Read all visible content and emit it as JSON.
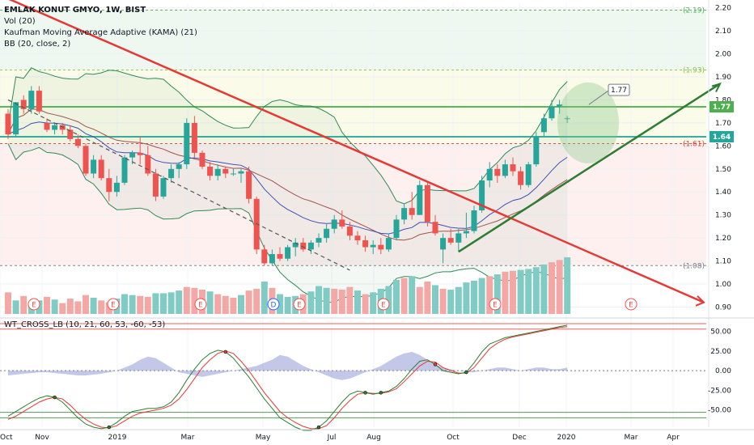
{
  "legend": {
    "title": "EMLAK KONUT GMYO, 1W, BIST",
    "vol": "Vol (20)",
    "kama": "Kaufman Moving Average Adaptive (KAMA) (21)",
    "bb": "BB (20, close, 2)"
  },
  "oscillator_legend": "WT_CROSS_LB (10, 21, 60, 53, -60, -53)",
  "colors": {
    "up": "#26a69a",
    "down": "#ef5350",
    "vol_up": "#80cbc4",
    "vol_down": "#f4a8a6",
    "bb": "#2e8b57",
    "kama": "#3f51b5",
    "basis": "#a1524e",
    "trend_red": "#e53935",
    "trend_green": "#2e7d32",
    "wt1": "#2e7d32",
    "wt2": "#e53935"
  },
  "chart_data": [
    {
      "type": "candlestick",
      "ylim": [
        0.87,
        2.22
      ],
      "yticks": [
        "2.20",
        "2.10",
        "2.00",
        "1.90",
        "1.80",
        "1.70",
        "1.60",
        "1.50",
        "1.40",
        "1.30",
        "1.20",
        "1.10",
        "1.00",
        "0.90"
      ],
      "xticks": [
        "Oct",
        "Nov",
        "2019",
        "Mar",
        "May",
        "Jul",
        "Aug",
        "Oct",
        "Dec",
        "2020",
        "Mar",
        "Apr"
      ],
      "horizontal_levels": [
        {
          "value": 2.19,
          "label": "(2.19)",
          "color": "#4caf50"
        },
        {
          "value": 1.93,
          "label": "(1.93)",
          "color": "#8bc34a"
        },
        {
          "value": 1.77,
          "label": "1.77",
          "color": "#4caf50"
        },
        {
          "value": 1.64,
          "label": "1.64",
          "color": "#26a69a"
        },
        {
          "value": 1.61,
          "label": "(1.61)",
          "color": "#e53935"
        },
        {
          "value": 1.08,
          "label": "(1.08)",
          "color": "#787b86"
        }
      ],
      "callout": "1.77",
      "event_markers": [
        "E",
        "E",
        "E",
        "D",
        "E",
        "E",
        "E"
      ],
      "candles": [
        [
          1.74,
          1.76,
          1.63,
          1.65
        ],
        [
          1.65,
          1.79,
          1.64,
          1.79
        ],
        [
          1.8,
          1.82,
          1.74,
          1.76
        ],
        [
          1.76,
          1.86,
          1.74,
          1.84
        ],
        [
          1.84,
          1.86,
          1.74,
          1.75
        ],
        [
          1.7,
          1.72,
          1.66,
          1.67
        ],
        [
          1.67,
          1.7,
          1.65,
          1.69
        ],
        [
          1.69,
          1.7,
          1.65,
          1.67
        ],
        [
          1.67,
          1.69,
          1.62,
          1.63
        ],
        [
          1.63,
          1.65,
          1.59,
          1.6
        ],
        [
          1.6,
          1.61,
          1.47,
          1.48
        ],
        [
          1.48,
          1.56,
          1.46,
          1.54
        ],
        [
          1.54,
          1.56,
          1.45,
          1.46
        ],
        [
          1.46,
          1.5,
          1.36,
          1.4
        ],
        [
          1.4,
          1.47,
          1.38,
          1.44
        ],
        [
          1.44,
          1.56,
          1.43,
          1.55
        ],
        [
          1.55,
          1.58,
          1.52,
          1.57
        ],
        [
          1.57,
          1.64,
          1.52,
          1.56
        ],
        [
          1.56,
          1.6,
          1.47,
          1.48
        ],
        [
          1.48,
          1.5,
          1.36,
          1.38
        ],
        [
          1.38,
          1.47,
          1.37,
          1.46
        ],
        [
          1.46,
          1.52,
          1.44,
          1.5
        ],
        [
          1.5,
          1.53,
          1.46,
          1.52
        ],
        [
          1.52,
          1.72,
          1.5,
          1.7
        ],
        [
          1.7,
          1.73,
          1.55,
          1.57
        ],
        [
          1.57,
          1.58,
          1.5,
          1.51
        ],
        [
          1.51,
          1.53,
          1.45,
          1.47
        ],
        [
          1.47,
          1.52,
          1.45,
          1.5
        ],
        [
          1.5,
          1.51,
          1.46,
          1.48
        ],
        [
          1.48,
          1.5,
          1.47,
          1.48
        ],
        [
          1.48,
          1.5,
          1.44,
          1.49
        ],
        [
          1.49,
          1.51,
          1.35,
          1.37
        ],
        [
          1.37,
          1.38,
          1.13,
          1.15
        ],
        [
          1.15,
          1.17,
          1.08,
          1.09
        ],
        [
          1.09,
          1.15,
          1.08,
          1.13
        ],
        [
          1.13,
          1.16,
          1.1,
          1.11
        ],
        [
          1.11,
          1.17,
          1.1,
          1.16
        ],
        [
          1.16,
          1.2,
          1.12,
          1.18
        ],
        [
          1.18,
          1.2,
          1.14,
          1.15
        ],
        [
          1.15,
          1.19,
          1.13,
          1.18
        ],
        [
          1.18,
          1.22,
          1.16,
          1.2
        ],
        [
          1.2,
          1.26,
          1.18,
          1.24
        ],
        [
          1.24,
          1.3,
          1.22,
          1.28
        ],
        [
          1.28,
          1.32,
          1.24,
          1.25
        ],
        [
          1.25,
          1.27,
          1.19,
          1.21
        ],
        [
          1.21,
          1.23,
          1.17,
          1.19
        ],
        [
          1.19,
          1.21,
          1.14,
          1.16
        ],
        [
          1.16,
          1.19,
          1.13,
          1.17
        ],
        [
          1.17,
          1.2,
          1.13,
          1.15
        ],
        [
          1.15,
          1.22,
          1.14,
          1.2
        ],
        [
          1.2,
          1.3,
          1.19,
          1.28
        ],
        [
          1.28,
          1.35,
          1.26,
          1.33
        ],
        [
          1.33,
          1.4,
          1.28,
          1.3
        ],
        [
          1.3,
          1.45,
          1.3,
          1.43
        ],
        [
          1.43,
          1.44,
          1.25,
          1.27
        ],
        [
          1.27,
          1.3,
          1.21,
          1.22
        ],
        [
          1.15,
          1.22,
          1.09,
          1.2
        ],
        [
          1.2,
          1.24,
          1.17,
          1.18
        ],
        [
          1.18,
          1.24,
          1.14,
          1.22
        ],
        [
          1.22,
          1.31,
          1.2,
          1.23
        ],
        [
          1.23,
          1.34,
          1.22,
          1.32
        ],
        [
          1.32,
          1.47,
          1.31,
          1.45
        ],
        [
          1.45,
          1.53,
          1.42,
          1.5
        ],
        [
          1.5,
          1.52,
          1.44,
          1.47
        ],
        [
          1.47,
          1.54,
          1.46,
          1.52
        ],
        [
          1.52,
          1.55,
          1.47,
          1.49
        ],
        [
          1.49,
          1.51,
          1.41,
          1.43
        ],
        [
          1.43,
          1.53,
          1.42,
          1.52
        ],
        [
          1.52,
          1.66,
          1.51,
          1.64
        ],
        [
          1.66,
          1.74,
          1.64,
          1.72
        ],
        [
          1.72,
          1.8,
          1.71,
          1.77
        ],
        [
          1.77,
          1.8,
          1.74,
          1.78
        ],
        [
          1.72,
          1.73,
          1.7,
          1.72
        ]
      ],
      "volume": [
        48,
        30,
        40,
        22,
        30,
        38,
        32,
        24,
        34,
        28,
        42,
        36,
        30,
        26,
        34,
        44,
        42,
        40,
        38,
        46,
        46,
        48,
        52,
        60,
        58,
        54,
        50,
        44,
        40,
        36,
        42,
        52,
        56,
        72,
        58,
        44,
        38,
        40,
        44,
        50,
        62,
        58,
        56,
        54,
        60,
        52,
        44,
        48,
        56,
        62,
        76,
        80,
        84,
        60,
        72,
        64,
        56,
        54,
        60,
        70,
        74,
        80,
        84,
        88,
        94,
        96,
        98,
        100,
        104,
        110,
        115,
        120,
        126
      ],
      "volume_up": [
        false,
        true,
        false,
        true,
        true,
        false,
        true,
        false,
        false,
        false,
        false,
        true,
        false,
        false,
        true,
        true,
        true,
        false,
        false,
        true,
        true,
        true,
        true,
        false,
        false,
        false,
        true,
        false,
        false,
        false,
        true,
        false,
        false,
        true,
        false,
        true,
        true,
        true,
        false,
        true,
        true,
        true,
        false,
        false,
        false,
        true,
        false,
        true,
        true,
        true,
        true,
        false,
        true,
        false,
        false,
        true,
        false,
        true,
        true,
        true,
        true,
        true,
        false,
        true,
        false,
        false,
        true,
        true,
        true,
        true,
        false,
        false,
        true
      ]
    },
    {
      "type": "line",
      "title": "WT_CROSS_LB (10, 21, 60, 53, -60, -53)",
      "ylim": [
        -72,
        62
      ],
      "yticks": [
        "50.00",
        "25.00",
        "0.00",
        "-25.00",
        "-50.00"
      ],
      "levels": [
        60,
        53,
        -53,
        -60
      ],
      "wt1": [
        -58,
        -52,
        -46,
        -40,
        -35,
        -32,
        -34,
        -40,
        -50,
        -60,
        -68,
        -72,
        -74,
        -72,
        -66,
        -58,
        -52,
        -50,
        -48,
        -48,
        -46,
        -40,
        -28,
        -12,
        2,
        14,
        22,
        26,
        24,
        16,
        4,
        -8,
        -22,
        -36,
        -48,
        -60,
        -66,
        -72,
        -76,
        -76,
        -72,
        -64,
        -52,
        -40,
        -30,
        -26,
        -28,
        -30,
        -28,
        -26,
        -20,
        -10,
        2,
        12,
        14,
        8,
        0,
        -2,
        -4,
        -2,
        10,
        24,
        34,
        38,
        42,
        44,
        46,
        48,
        50,
        52,
        54,
        56,
        58
      ],
      "wt2": [
        -62,
        -58,
        -52,
        -46,
        -40,
        -36,
        -34,
        -36,
        -44,
        -54,
        -62,
        -68,
        -72,
        -73,
        -70,
        -64,
        -58,
        -54,
        -52,
        -50,
        -48,
        -44,
        -36,
        -24,
        -10,
        4,
        14,
        22,
        25,
        22,
        12,
        0,
        -14,
        -28,
        -40,
        -52,
        -60,
        -66,
        -71,
        -74,
        -74,
        -70,
        -60,
        -48,
        -38,
        -30,
        -28,
        -29,
        -29,
        -27,
        -23,
        -14,
        -4,
        6,
        12,
        11,
        4,
        0,
        -3,
        -3,
        4,
        16,
        28,
        35,
        40,
        43,
        45,
        47,
        49,
        51,
        53,
        55,
        56
      ],
      "histogram": [
        -6,
        -5,
        -4,
        -3,
        -2,
        -2,
        -3,
        -4,
        -5,
        -6,
        -6,
        -5,
        -4,
        -2,
        0,
        4,
        8,
        14,
        18,
        16,
        10,
        4,
        -2,
        -4,
        -6,
        -8,
        -6,
        -4,
        -2,
        0,
        2,
        4,
        6,
        10,
        14,
        20,
        18,
        12,
        6,
        2,
        -2,
        -6,
        -10,
        -12,
        -10,
        -6,
        -2,
        2,
        6,
        12,
        18,
        22,
        24,
        20,
        14,
        8,
        4,
        2,
        0,
        -2,
        -2,
        0,
        2,
        4,
        4,
        2,
        0,
        2,
        4,
        4,
        2,
        2,
        4
      ]
    }
  ]
}
